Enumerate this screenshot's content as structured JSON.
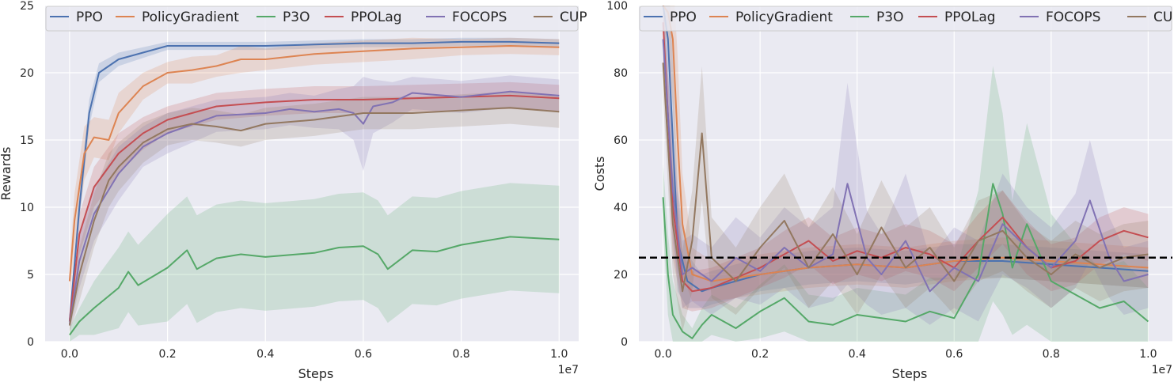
{
  "chart_data": [
    {
      "type": "line",
      "title": "",
      "xlabel": "Steps",
      "ylabel": "Rewards",
      "x_multiplier_label": "1e7",
      "xlim": [
        -0.05,
        1.04
      ],
      "ylim": [
        0,
        25
      ],
      "xticks": [
        0.0,
        0.2,
        0.4,
        0.6,
        0.8,
        1.0
      ],
      "xtick_labels": [
        "0.0",
        "0.2",
        "0.4",
        "0.6",
        "0.8",
        "1.0"
      ],
      "yticks": [
        0,
        5,
        10,
        15,
        20,
        25
      ],
      "ytick_labels": [
        "0",
        "5",
        "10",
        "15",
        "20",
        "25"
      ],
      "grid": true,
      "legend_position": "top",
      "reference_line": null,
      "series": [
        {
          "name": "PPO",
          "color": "#4c72b0",
          "x": [
            0,
            0.02,
            0.04,
            0.06,
            0.1,
            0.15,
            0.2,
            0.3,
            0.4,
            0.5,
            0.6,
            0.7,
            0.8,
            0.9,
            1.0
          ],
          "y": [
            1.5,
            10,
            17,
            20,
            21,
            21.5,
            22,
            22,
            22,
            22.1,
            22.2,
            22.2,
            22.3,
            22.3,
            22.2
          ],
          "band": [
            0.3,
            1,
            1,
            0.7,
            0.5,
            0.4,
            0.3,
            0.3,
            0.3,
            0.3,
            0.3,
            0.3,
            0.3,
            0.3,
            0.3
          ]
        },
        {
          "name": "PolicyGradient",
          "color": "#dd8452",
          "x": [
            0,
            0.01,
            0.03,
            0.05,
            0.08,
            0.1,
            0.15,
            0.2,
            0.25,
            0.3,
            0.35,
            0.4,
            0.5,
            0.6,
            0.7,
            0.8,
            0.9,
            1.0
          ],
          "y": [
            4.5,
            9,
            14,
            15.2,
            15,
            17,
            19,
            20,
            20.2,
            20.5,
            21,
            21,
            21.4,
            21.6,
            21.8,
            21.9,
            22,
            21.9
          ],
          "band": [
            1,
            2,
            2,
            1.5,
            1.5,
            1.5,
            1,
            0.8,
            1,
            0.8,
            1,
            0.8,
            0.8,
            0.8,
            0.8,
            0.6,
            0.6,
            0.6
          ]
        },
        {
          "name": "P3O",
          "color": "#55a868",
          "x": [
            0,
            0.02,
            0.05,
            0.1,
            0.12,
            0.14,
            0.2,
            0.24,
            0.26,
            0.3,
            0.35,
            0.4,
            0.5,
            0.55,
            0.6,
            0.63,
            0.65,
            0.7,
            0.75,
            0.8,
            0.9,
            1.0
          ],
          "y": [
            0.5,
            1.5,
            2.5,
            4,
            5.2,
            4.2,
            5.5,
            6.8,
            5.4,
            6.2,
            6.5,
            6.3,
            6.6,
            7,
            7.1,
            6.5,
            5.4,
            6.8,
            6.7,
            7.2,
            7.8,
            7.6
          ],
          "band": [
            0.5,
            1,
            2,
            3,
            3,
            3,
            4,
            4,
            4,
            4,
            4,
            4,
            4,
            4,
            4,
            4,
            4,
            4,
            4,
            4,
            4,
            4
          ]
        },
        {
          "name": "PPOLag",
          "color": "#c44e52",
          "x": [
            0,
            0.02,
            0.05,
            0.1,
            0.15,
            0.2,
            0.3,
            0.4,
            0.5,
            0.6,
            0.7,
            0.8,
            0.9,
            1.0
          ],
          "y": [
            1.5,
            8,
            11.5,
            14,
            15.5,
            16.5,
            17.5,
            17.8,
            18,
            18,
            18.1,
            18.2,
            18.3,
            18.1
          ],
          "band": [
            0.5,
            1.5,
            1.5,
            1.5,
            1.2,
            1,
            1,
            1,
            1,
            1,
            1,
            1,
            1,
            1
          ]
        },
        {
          "name": "FOCOPS",
          "color": "#8172b3",
          "x": [
            0,
            0.02,
            0.05,
            0.1,
            0.15,
            0.2,
            0.3,
            0.4,
            0.45,
            0.5,
            0.55,
            0.58,
            0.6,
            0.62,
            0.66,
            0.7,
            0.8,
            0.9,
            1.0
          ],
          "y": [
            1.3,
            6,
            9.5,
            12.5,
            14.5,
            15.5,
            16.8,
            17,
            17.3,
            17.1,
            17.3,
            17,
            16.2,
            17.5,
            17.8,
            18.5,
            18.2,
            18.6,
            18.3
          ],
          "band": [
            0.5,
            2,
            2,
            2,
            1.5,
            1.5,
            1.2,
            1.2,
            1.2,
            1.2,
            1.5,
            2,
            3.5,
            2,
            1.5,
            1.2,
            1.2,
            1.2,
            1.2
          ]
        },
        {
          "name": "CUP",
          "color": "#937860",
          "x": [
            0,
            0.02,
            0.05,
            0.08,
            0.1,
            0.15,
            0.2,
            0.25,
            0.3,
            0.35,
            0.4,
            0.5,
            0.6,
            0.7,
            0.8,
            0.9,
            1.0
          ],
          "y": [
            1.2,
            5,
            9,
            12,
            13,
            14.8,
            15.8,
            16.2,
            16,
            15.7,
            16.2,
            16.5,
            17,
            17,
            17.2,
            17.4,
            17.1
          ],
          "band": [
            0.5,
            2,
            2,
            2,
            1.8,
            1.5,
            1.2,
            1.2,
            1.2,
            1.2,
            1.2,
            1.2,
            1.2,
            1.2,
            1.2,
            1.2,
            1.2
          ]
        }
      ]
    },
    {
      "type": "line",
      "title": "",
      "xlabel": "Steps",
      "ylabel": "Costs",
      "x_multiplier_label": "1e7",
      "xlim": [
        -0.05,
        1.05
      ],
      "ylim": [
        0,
        100
      ],
      "xticks": [
        0.0,
        0.2,
        0.4,
        0.6,
        0.8,
        1.0
      ],
      "xtick_labels": [
        "0.0",
        "0.2",
        "0.4",
        "0.6",
        "0.8",
        "1.0"
      ],
      "yticks": [
        0,
        20,
        40,
        60,
        80,
        100
      ],
      "ytick_labels": [
        "0",
        "20",
        "40",
        "60",
        "80",
        "100"
      ],
      "grid": true,
      "legend_position": "top",
      "reference_line": {
        "y": 25,
        "style": "dashed",
        "color": "#000000"
      },
      "series": [
        {
          "name": "PPO",
          "color": "#4c72b0",
          "x": [
            0,
            0.01,
            0.02,
            0.03,
            0.05,
            0.08,
            0.1,
            0.15,
            0.2,
            0.3,
            0.4,
            0.5,
            0.6,
            0.7,
            0.8,
            0.9,
            1.0
          ],
          "y": [
            100,
            90,
            60,
            30,
            18,
            15,
            16,
            18,
            20,
            22,
            23,
            22,
            24,
            24,
            23,
            22,
            21
          ],
          "band": [
            10,
            20,
            25,
            15,
            8,
            5,
            5,
            5,
            5,
            5,
            5,
            5,
            5,
            5,
            5,
            5,
            5
          ]
        },
        {
          "name": "PolicyGradient",
          "color": "#dd8452",
          "x": [
            0,
            0.01,
            0.02,
            0.03,
            0.04,
            0.06,
            0.1,
            0.2,
            0.3,
            0.4,
            0.5,
            0.6,
            0.7,
            0.8,
            0.9,
            1.0
          ],
          "y": [
            100,
            98,
            90,
            60,
            35,
            20,
            18,
            20,
            22,
            23,
            22,
            24,
            25,
            24,
            23,
            22
          ],
          "band": [
            5,
            10,
            20,
            25,
            15,
            8,
            6,
            6,
            6,
            6,
            6,
            6,
            6,
            6,
            6,
            6
          ]
        },
        {
          "name": "P3O",
          "color": "#55a868",
          "x": [
            0,
            0.01,
            0.02,
            0.04,
            0.06,
            0.08,
            0.1,
            0.15,
            0.2,
            0.25,
            0.3,
            0.35,
            0.4,
            0.45,
            0.5,
            0.55,
            0.6,
            0.65,
            0.68,
            0.7,
            0.72,
            0.75,
            0.8,
            0.85,
            0.9,
            0.95,
            1.0
          ],
          "y": [
            43,
            20,
            8,
            3,
            1,
            5,
            8,
            4,
            9,
            13,
            6,
            5,
            8,
            7,
            6,
            9,
            7,
            20,
            47,
            38,
            22,
            35,
            18,
            14,
            10,
            12,
            6
          ],
          "band": [
            10,
            12,
            10,
            5,
            3,
            5,
            6,
            6,
            8,
            10,
            8,
            8,
            8,
            8,
            8,
            10,
            12,
            25,
            35,
            30,
            20,
            30,
            20,
            15,
            12,
            12,
            10
          ]
        },
        {
          "name": "PPOLag",
          "color": "#c44e52",
          "x": [
            0,
            0.02,
            0.04,
            0.06,
            0.1,
            0.15,
            0.2,
            0.25,
            0.3,
            0.35,
            0.4,
            0.45,
            0.5,
            0.55,
            0.6,
            0.65,
            0.7,
            0.75,
            0.8,
            0.85,
            0.9,
            0.95,
            1.0
          ],
          "y": [
            95,
            40,
            18,
            15,
            16,
            19,
            22,
            26,
            30,
            24,
            27,
            25,
            28,
            26,
            22,
            30,
            37,
            28,
            22,
            24,
            30,
            33,
            31
          ],
          "band": [
            10,
            15,
            8,
            6,
            6,
            6,
            6,
            7,
            7,
            7,
            7,
            7,
            7,
            7,
            7,
            8,
            8,
            8,
            7,
            7,
            7,
            7,
            7
          ]
        },
        {
          "name": "FOCOPS",
          "color": "#8172b3",
          "x": [
            0,
            0.02,
            0.04,
            0.06,
            0.1,
            0.15,
            0.2,
            0.25,
            0.3,
            0.35,
            0.38,
            0.42,
            0.45,
            0.5,
            0.55,
            0.6,
            0.65,
            0.7,
            0.75,
            0.8,
            0.85,
            0.88,
            0.92,
            0.95,
            1.0
          ],
          "y": [
            90,
            45,
            20,
            22,
            18,
            25,
            21,
            28,
            22,
            26,
            47,
            25,
            20,
            30,
            15,
            22,
            18,
            35,
            28,
            22,
            30,
            42,
            25,
            18,
            20
          ],
          "band": [
            10,
            15,
            10,
            10,
            10,
            12,
            10,
            12,
            12,
            14,
            30,
            14,
            12,
            20,
            10,
            12,
            12,
            15,
            12,
            12,
            14,
            18,
            12,
            10,
            10
          ]
        },
        {
          "name": "CUP",
          "color": "#937860",
          "x": [
            0,
            0.02,
            0.04,
            0.06,
            0.08,
            0.1,
            0.15,
            0.2,
            0.25,
            0.3,
            0.35,
            0.4,
            0.45,
            0.5,
            0.55,
            0.6,
            0.65,
            0.7,
            0.75,
            0.8,
            0.85,
            0.9,
            0.95,
            1.0
          ],
          "y": [
            83,
            35,
            15,
            30,
            62,
            25,
            18,
            28,
            36,
            22,
            32,
            20,
            34,
            22,
            28,
            18,
            30,
            33,
            25,
            20,
            26,
            22,
            25,
            26
          ],
          "band": [
            10,
            15,
            12,
            15,
            20,
            12,
            10,
            12,
            14,
            12,
            14,
            12,
            14,
            12,
            12,
            10,
            12,
            12,
            10,
            10,
            10,
            10,
            10,
            10
          ]
        }
      ]
    }
  ]
}
